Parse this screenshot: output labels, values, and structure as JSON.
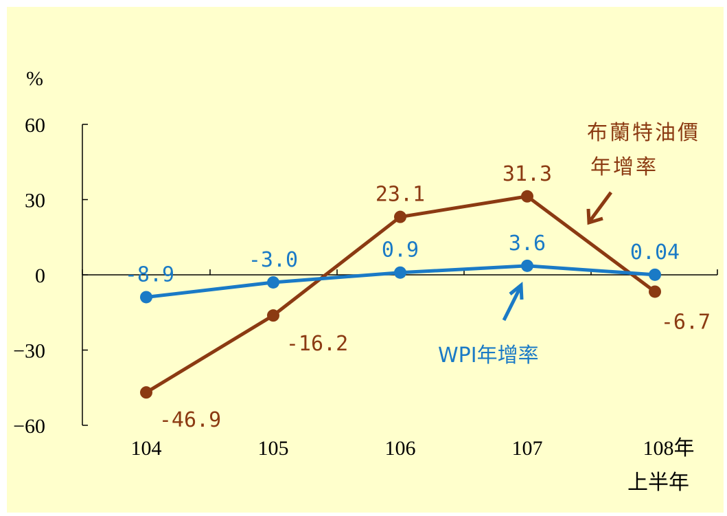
{
  "chart_data": {
    "type": "line",
    "ylabel": "%",
    "ylim": [
      -60,
      60
    ],
    "yticks": [
      60,
      30,
      0,
      -30,
      -60
    ],
    "ytick_labels": [
      "60",
      "30",
      "0",
      "−30",
      "−60"
    ],
    "categories": [
      "104",
      "105",
      "106",
      "107",
      "108年"
    ],
    "category_sublabels": [
      "",
      "",
      "",
      "",
      "上半年"
    ],
    "colors": {
      "brent": "#8b3a12",
      "wpi": "#1a7ac6",
      "background": "#ffffcc"
    },
    "series": [
      {
        "key": "brent",
        "name_lines": [
          "布蘭特油價",
          "年增率"
        ],
        "values": [
          -46.9,
          -16.2,
          23.1,
          31.3,
          -6.7
        ],
        "value_labels": [
          "-46.9",
          "-16.2",
          "23.1",
          "31.3",
          "-6.7"
        ]
      },
      {
        "key": "wpi",
        "name_lines": [
          "WPI年增率"
        ],
        "values": [
          -8.9,
          -3.0,
          0.9,
          3.6,
          0.04
        ],
        "value_labels": [
          "-8.9",
          "-3.0",
          "0.9",
          "3.6",
          "0.04"
        ]
      }
    ]
  }
}
